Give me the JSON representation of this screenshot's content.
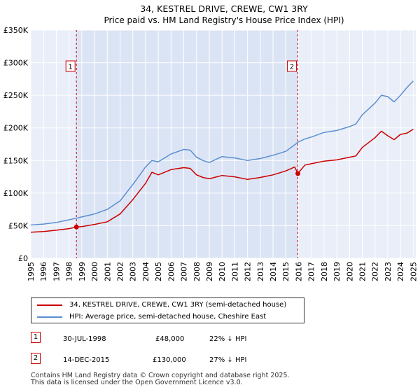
{
  "chart_data": {
    "type": "line",
    "title": "34, KESTREL DRIVE, CREWE, CW1 3RY",
    "subtitle": "Price paid vs. HM Land Registry's House Price Index (HPI)",
    "xlim": [
      1995,
      2025.2
    ],
    "ylim": [
      0,
      350000
    ],
    "y_ticks": [
      0,
      50000,
      100000,
      150000,
      200000,
      250000,
      300000,
      350000
    ],
    "y_tick_labels": [
      "£0",
      "£50K",
      "£100K",
      "£150K",
      "£200K",
      "£250K",
      "£300K",
      "£350K"
    ],
    "x_ticks": [
      1995,
      1996,
      1997,
      1998,
      1999,
      2000,
      2001,
      2002,
      2003,
      2004,
      2005,
      2006,
      2007,
      2008,
      2009,
      2010,
      2011,
      2012,
      2013,
      2014,
      2015,
      2016,
      2017,
      2018,
      2019,
      2020,
      2021,
      2022,
      2023,
      2024,
      2025
    ],
    "x_tick_labels": [
      "1995",
      "1996",
      "1997",
      "1998",
      "1999",
      "2000",
      "2001",
      "2002",
      "2003",
      "2004",
      "2005",
      "2006",
      "2007",
      "2008",
      "2009",
      "2010",
      "2011",
      "2012",
      "2013",
      "2014",
      "2015",
      "2016",
      "2017",
      "2018",
      "2019",
      "2020",
      "2021",
      "2022",
      "2023",
      "2024",
      "2025"
    ],
    "grid": true,
    "shaded_span": [
      1998.58,
      2015.95
    ],
    "series": [
      {
        "name": "34, KESTREL DRIVE, CREWE, CW1 3RY (semi-detached house)",
        "color": "#cc0000",
        "x": [
          1995.0,
          1996.0,
          1997.0,
          1998.0,
          1998.58,
          1999.0,
          2000.0,
          2001.0,
          2002.0,
          2003.0,
          2004.0,
          2004.5,
          2005.0,
          2006.0,
          2007.0,
          2007.5,
          2008.0,
          2008.5,
          2009.0,
          2010.0,
          2011.0,
          2012.0,
          2013.0,
          2014.0,
          2015.0,
          2015.7,
          2015.95,
          2016.5,
          2017.0,
          2018.0,
          2019.0,
          2020.0,
          2020.5,
          2021.0,
          2022.0,
          2022.5,
          2023.0,
          2023.5,
          2024.0,
          2024.5,
          2025.0
        ],
        "values": [
          40000,
          41000,
          43000,
          45500,
          48000,
          48500,
          52000,
          56000,
          68000,
          90000,
          115000,
          132000,
          128000,
          136000,
          139000,
          138000,
          128000,
          124000,
          122000,
          127000,
          125000,
          121000,
          124000,
          128000,
          134000,
          140000,
          130000,
          143000,
          145000,
          149000,
          151000,
          155000,
          157000,
          170000,
          185000,
          195000,
          188000,
          182000,
          190000,
          192000,
          198000
        ]
      },
      {
        "name": "HPI: Average price, semi-detached house, Cheshire East",
        "color": "#5b8fd1",
        "x": [
          1995.0,
          1996.0,
          1997.0,
          1998.0,
          1998.58,
          1999.0,
          2000.0,
          2001.0,
          2002.0,
          2003.0,
          2004.0,
          2004.5,
          2005.0,
          2006.0,
          2007.0,
          2007.5,
          2008.0,
          2008.5,
          2009.0,
          2010.0,
          2011.0,
          2012.0,
          2013.0,
          2014.0,
          2015.0,
          2015.7,
          2015.95,
          2016.5,
          2017.0,
          2018.0,
          2019.0,
          2020.0,
          2020.5,
          2021.0,
          2022.0,
          2022.5,
          2023.0,
          2023.5,
          2024.0,
          2024.5,
          2025.0
        ],
        "values": [
          51000,
          52500,
          55000,
          59000,
          61500,
          63500,
          68000,
          75000,
          88000,
          113000,
          140000,
          150000,
          148000,
          160000,
          167000,
          166000,
          155000,
          150000,
          147000,
          156000,
          154000,
          150000,
          153000,
          158000,
          164000,
          174000,
          178000,
          183000,
          186000,
          193000,
          196000,
          202000,
          206000,
          220000,
          238000,
          250000,
          248000,
          240000,
          250000,
          262000,
          272000
        ]
      }
    ],
    "markers": [
      {
        "label": "1",
        "x": 1998.58,
        "value": 48000
      },
      {
        "label": "2",
        "x": 2015.95,
        "value": 130000
      }
    ]
  },
  "legend": {
    "property": "34, KESTREL DRIVE, CREWE, CW1 3RY (semi-detached house)",
    "hpi": "HPI: Average price, semi-detached house, Cheshire East"
  },
  "transactions": [
    {
      "label": "1",
      "date": "30-JUL-1998",
      "price": "£48,000",
      "hpi_diff": "22% ↓ HPI"
    },
    {
      "label": "2",
      "date": "14-DEC-2015",
      "price": "£130,000",
      "hpi_diff": "27% ↓ HPI"
    }
  ],
  "footer": {
    "line1": "Contains HM Land Registry data © Crown copyright and database right 2025.",
    "line2": "This data is licensed under the Open Government Licence v3.0."
  }
}
